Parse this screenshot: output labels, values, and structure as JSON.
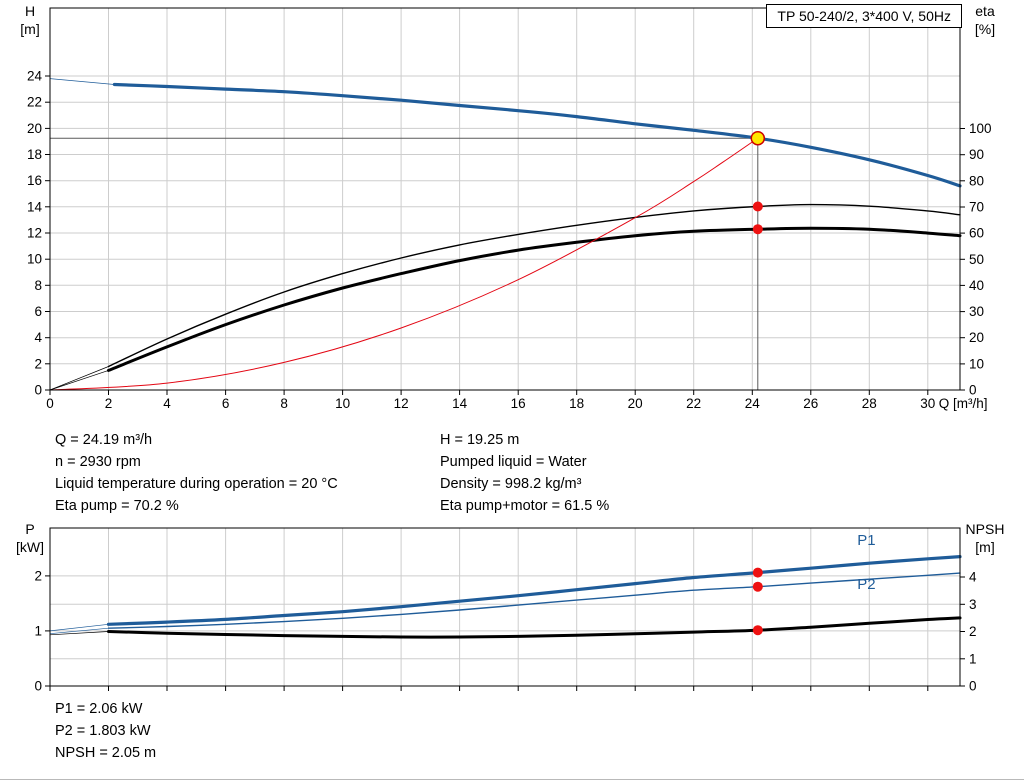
{
  "title_box": "TP 50-240/2, 3*400 V, 50Hz",
  "info": {
    "left": [
      "Q = 24.19 m³/h",
      "n = 2930 rpm",
      "Liquid temperature during operation = 20 °C",
      "Eta pump = 70.2 %"
    ],
    "right": [
      "H = 19.25 m",
      "Pumped liquid = Water",
      "Density = 998.2 kg/m³",
      "Eta pump+motor = 61.5 %"
    ],
    "power": [
      "P1 = 2.06 kW",
      "P2 = 1.803 kW",
      "NPSH = 2.05 m"
    ]
  },
  "colors": {
    "curve_blue": "#1f5c99",
    "curve_red": "#e30613",
    "marker_red": "#ee1111",
    "marker_yellow": "#ffe600",
    "grid": "#cdcdcd"
  },
  "chart_data": [
    {
      "name": "hq-eta-chart",
      "type": "line",
      "title": "",
      "xlabel": "Q [m³/h]",
      "x_range": [
        0,
        31.1
      ],
      "x_ticks": [
        0,
        2,
        4,
        6,
        8,
        10,
        12,
        14,
        16,
        18,
        20,
        22,
        24,
        26,
        28,
        30
      ],
      "left_axis": {
        "label_lines": [
          "H",
          "[m]"
        ],
        "range": [
          0,
          29.2
        ],
        "ticks": [
          0,
          2,
          4,
          6,
          8,
          10,
          12,
          14,
          16,
          18,
          20,
          22,
          24
        ],
        "grid_ticks": [
          2,
          4,
          6,
          8,
          10,
          12,
          14,
          16,
          18,
          20,
          22,
          24
        ]
      },
      "right_axis": {
        "label_lines": [
          "eta",
          "[%]"
        ],
        "range": [
          0,
          146.1
        ],
        "ticks": [
          0,
          10,
          20,
          30,
          40,
          50,
          60,
          70,
          80,
          90,
          100
        ],
        "grid_ticks": []
      },
      "series": [
        {
          "name": "head-curve",
          "axis": "left",
          "color": "#1f5c99",
          "width": 3.2,
          "points": [
            [
              2.2,
              23.35
            ],
            [
              4,
              23.2
            ],
            [
              6,
              23.0
            ],
            [
              8,
              22.8
            ],
            [
              10,
              22.5
            ],
            [
              12,
              22.15
            ],
            [
              14,
              21.75
            ],
            [
              16,
              21.35
            ],
            [
              18,
              20.9
            ],
            [
              20,
              20.35
            ],
            [
              22,
              19.85
            ],
            [
              24.19,
              19.25
            ],
            [
              26,
              18.55
            ],
            [
              28,
              17.6
            ],
            [
              30,
              16.4
            ],
            [
              31.1,
              15.6
            ]
          ]
        },
        {
          "name": "head-lead-line",
          "axis": "left",
          "color": "#1f5c99",
          "width": 0.8,
          "points": [
            [
              0,
              23.8
            ],
            [
              2.2,
              23.35
            ]
          ]
        },
        {
          "name": "eta-pump-curve",
          "axis": "right",
          "color": "#000000",
          "width": 1.4,
          "points": [
            [
              2,
              9
            ],
            [
              4,
              19.5
            ],
            [
              6,
              29
            ],
            [
              8,
              37.5
            ],
            [
              10,
              44.5
            ],
            [
              12,
              50.5
            ],
            [
              14,
              55.5
            ],
            [
              16,
              59.5
            ],
            [
              18,
              63
            ],
            [
              20,
              66
            ],
            [
              22,
              68.5
            ],
            [
              24.19,
              70.2
            ],
            [
              26,
              70.9
            ],
            [
              28,
              70.3
            ],
            [
              30,
              68.5
            ],
            [
              31.1,
              67
            ]
          ]
        },
        {
          "name": "eta-pump-motor-curve",
          "axis": "right",
          "color": "#000000",
          "width": 3,
          "points": [
            [
              2,
              7.5
            ],
            [
              4,
              16.5
            ],
            [
              6,
              25
            ],
            [
              8,
              32.5
            ],
            [
              10,
              39
            ],
            [
              12,
              44.5
            ],
            [
              14,
              49.5
            ],
            [
              16,
              53.5
            ],
            [
              18,
              56.5
            ],
            [
              20,
              59
            ],
            [
              22,
              60.7
            ],
            [
              24.19,
              61.5
            ],
            [
              26,
              61.9
            ],
            [
              28,
              61.5
            ],
            [
              30,
              60
            ],
            [
              31.1,
              59
            ]
          ]
        },
        {
          "name": "eta-lead-line-1",
          "axis": "right",
          "color": "#000000",
          "width": 0.7,
          "points": [
            [
              0,
              0
            ],
            [
              2,
              9
            ]
          ]
        },
        {
          "name": "eta-lead-line-2",
          "axis": "right",
          "color": "#000000",
          "width": 0.7,
          "points": [
            [
              0,
              0
            ],
            [
              2,
              7.5
            ]
          ]
        },
        {
          "name": "system-curve",
          "axis": "left",
          "color": "#e30613",
          "width": 1,
          "points": [
            [
              0,
              0
            ],
            [
              4,
              0.53
            ],
            [
              8,
              2.11
            ],
            [
              12,
              4.74
            ],
            [
              16,
              8.43
            ],
            [
              20,
              13.17
            ],
            [
              22,
              15.93
            ],
            [
              23,
              17.42
            ],
            [
              24.19,
              19.25
            ]
          ]
        }
      ],
      "guides": {
        "x": 24.19,
        "value": 19.25,
        "axis": "left"
      },
      "markers": [
        {
          "name": "operating-point",
          "x": 24.19,
          "value": 19.25,
          "axis": "left",
          "r": 6.5,
          "fill": "#ffe600",
          "stroke": "#cc0000",
          "sw": 1.5
        },
        {
          "name": "eta-pump-point",
          "x": 24.19,
          "value": 70.2,
          "axis": "right",
          "r": 5,
          "fill": "#ee1111",
          "stroke": "none",
          "sw": 0
        },
        {
          "name": "eta-pump-motor-point",
          "x": 24.19,
          "value": 61.5,
          "axis": "right",
          "r": 5,
          "fill": "#ee1111",
          "stroke": "none",
          "sw": 0
        }
      ],
      "annotations": []
    },
    {
      "name": "power-npsh-chart",
      "type": "line",
      "title": "",
      "xlabel": "",
      "x_range": [
        0,
        31.1
      ],
      "x_ticks": [
        0,
        2,
        4,
        6,
        8,
        10,
        12,
        14,
        16,
        18,
        20,
        22,
        24,
        26,
        28,
        30
      ],
      "left_axis": {
        "label_lines": [
          "P",
          "[kW]"
        ],
        "range": [
          0,
          2.87
        ],
        "ticks": [
          0,
          1,
          2
        ],
        "grid_ticks": [
          1,
          2
        ]
      },
      "right_axis": {
        "label_lines": [
          "NPSH",
          "[m]"
        ],
        "range": [
          0,
          5.8
        ],
        "ticks": [
          0,
          1,
          2,
          3,
          4
        ],
        "grid_ticks": [
          1,
          3
        ]
      },
      "series": [
        {
          "name": "p1-curve",
          "axis": "left",
          "color": "#1f5c99",
          "width": 3.2,
          "points": [
            [
              2,
              1.12
            ],
            [
              4,
              1.16
            ],
            [
              6,
              1.21
            ],
            [
              8,
              1.28
            ],
            [
              10,
              1.35
            ],
            [
              12,
              1.44
            ],
            [
              14,
              1.54
            ],
            [
              16,
              1.64
            ],
            [
              18,
              1.75
            ],
            [
              20,
              1.86
            ],
            [
              22,
              1.97
            ],
            [
              24.19,
              2.06
            ],
            [
              26,
              2.14
            ],
            [
              28,
              2.23
            ],
            [
              30,
              2.31
            ],
            [
              31.1,
              2.35
            ]
          ]
        },
        {
          "name": "p2-curve",
          "axis": "left",
          "color": "#1f5c99",
          "width": 1.4,
          "points": [
            [
              2,
              1.05
            ],
            [
              4,
              1.08
            ],
            [
              6,
              1.12
            ],
            [
              8,
              1.17
            ],
            [
              10,
              1.23
            ],
            [
              12,
              1.3
            ],
            [
              14,
              1.38
            ],
            [
              16,
              1.47
            ],
            [
              18,
              1.56
            ],
            [
              20,
              1.65
            ],
            [
              22,
              1.74
            ],
            [
              24.19,
              1.803
            ],
            [
              26,
              1.87
            ],
            [
              28,
              1.94
            ],
            [
              30,
              2.01
            ],
            [
              31.1,
              2.05
            ]
          ]
        },
        {
          "name": "p1-lead-line",
          "axis": "left",
          "color": "#1f5c99",
          "width": 0.7,
          "points": [
            [
              0,
              1.0
            ],
            [
              2,
              1.12
            ]
          ]
        },
        {
          "name": "p2-lead-line",
          "axis": "left",
          "color": "#1f5c99",
          "width": 0.7,
          "points": [
            [
              0,
              0.95
            ],
            [
              2,
              1.05
            ]
          ]
        },
        {
          "name": "npsh-curve",
          "axis": "right",
          "color": "#000000",
          "width": 3,
          "points": [
            [
              2,
              2.0
            ],
            [
              4,
              1.94
            ],
            [
              6,
              1.89
            ],
            [
              8,
              1.85
            ],
            [
              10,
              1.82
            ],
            [
              12,
              1.8
            ],
            [
              14,
              1.8
            ],
            [
              16,
              1.82
            ],
            [
              18,
              1.86
            ],
            [
              20,
              1.92
            ],
            [
              22,
              1.98
            ],
            [
              24.19,
              2.05
            ],
            [
              26,
              2.16
            ],
            [
              28,
              2.3
            ],
            [
              30,
              2.44
            ],
            [
              31.1,
              2.5
            ]
          ]
        },
        {
          "name": "npsh-lead-line",
          "axis": "right",
          "color": "#000000",
          "width": 0.7,
          "points": [
            [
              0,
              1.88
            ],
            [
              2,
              2.0
            ]
          ]
        }
      ],
      "guides": null,
      "markers": [
        {
          "name": "p1-point",
          "x": 24.19,
          "value": 2.06,
          "axis": "left",
          "r": 5,
          "fill": "#ee1111",
          "stroke": "none",
          "sw": 0
        },
        {
          "name": "p2-point",
          "x": 24.19,
          "value": 1.803,
          "axis": "left",
          "r": 5,
          "fill": "#ee1111",
          "stroke": "none",
          "sw": 0
        },
        {
          "name": "npsh-point",
          "x": 24.19,
          "value": 2.05,
          "axis": "right",
          "r": 5,
          "fill": "#ee1111",
          "stroke": "none",
          "sw": 0
        }
      ],
      "annotations": [
        {
          "text": "P1",
          "x": 27.9,
          "value": 2.56,
          "axis": "left",
          "color": "#1f5c99",
          "size": 15
        },
        {
          "text": "P2",
          "x": 27.9,
          "value": 1.76,
          "axis": "left",
          "color": "#1f5c99",
          "size": 15
        }
      ]
    }
  ]
}
